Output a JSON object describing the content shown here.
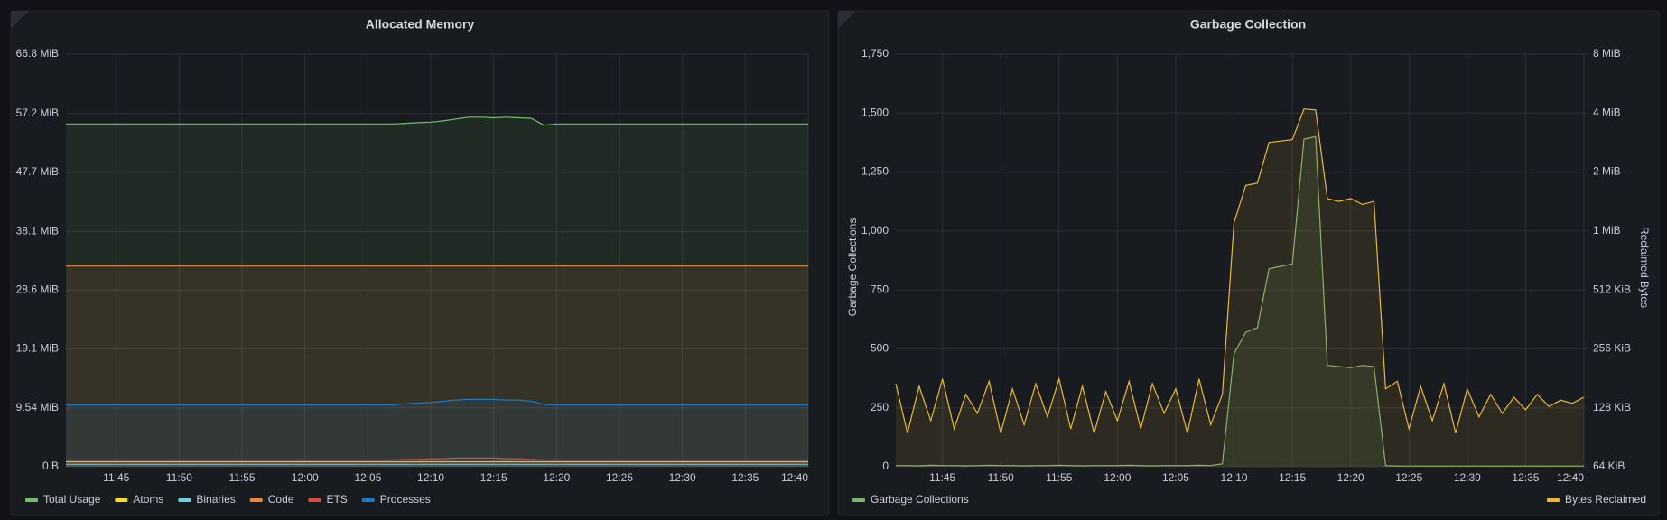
{
  "chart_data": [
    {
      "type": "line",
      "title": "Allocated Memory",
      "x": [
        "11:41",
        "11:42",
        "11:43",
        "11:44",
        "11:45",
        "11:46",
        "11:47",
        "11:48",
        "11:49",
        "11:50",
        "11:51",
        "11:52",
        "11:53",
        "11:54",
        "11:55",
        "11:56",
        "11:57",
        "11:58",
        "11:59",
        "12:00",
        "12:01",
        "12:02",
        "12:03",
        "12:04",
        "12:05",
        "12:06",
        "12:07",
        "12:08",
        "12:09",
        "12:10",
        "12:11",
        "12:12",
        "12:13",
        "12:14",
        "12:15",
        "12:16",
        "12:17",
        "12:18",
        "12:19",
        "12:20",
        "12:21",
        "12:22",
        "12:23",
        "12:24",
        "12:25",
        "12:26",
        "12:27",
        "12:28",
        "12:29",
        "12:30",
        "12:31",
        "12:32",
        "12:33",
        "12:34",
        "12:35",
        "12:36",
        "12:37",
        "12:38",
        "12:39",
        "12:40"
      ],
      "xlim": [
        "11:41",
        "12:40"
      ],
      "xticks": [
        "11:45",
        "11:50",
        "11:55",
        "12:00",
        "12:05",
        "12:10",
        "12:15",
        "12:20",
        "12:25",
        "12:30",
        "12:35",
        "12:40"
      ],
      "ylim": [
        0,
        66.8
      ],
      "yticks": [
        {
          "value": 0,
          "label": "0 B"
        },
        {
          "value": 9.54,
          "label": "9.54 MiB"
        },
        {
          "value": 19.1,
          "label": "19.1 MiB"
        },
        {
          "value": 28.6,
          "label": "28.6 MiB"
        },
        {
          "value": 38.1,
          "label": "38.1 MiB"
        },
        {
          "value": 47.7,
          "label": "47.7 MiB"
        },
        {
          "value": 57.2,
          "label": "57.2 MiB"
        },
        {
          "value": 66.8,
          "label": "66.8 MiB"
        }
      ],
      "grid": true,
      "series": [
        {
          "name": "Total Usage",
          "color": "#73bf69",
          "values": [
            55.5,
            55.5,
            55.5,
            55.5,
            55.5,
            55.5,
            55.5,
            55.5,
            55.5,
            55.5,
            55.5,
            55.5,
            55.5,
            55.5,
            55.5,
            55.5,
            55.5,
            55.5,
            55.5,
            55.5,
            55.5,
            55.5,
            55.5,
            55.5,
            55.5,
            55.5,
            55.5,
            55.6,
            55.7,
            55.8,
            56,
            56.3,
            56.6,
            56.6,
            56.5,
            56.6,
            56.5,
            56.4,
            55.3,
            55.5,
            55.5,
            55.5,
            55.5,
            55.5,
            55.5,
            55.5,
            55.5,
            55.5,
            55.5,
            55.5,
            55.5,
            55.5,
            55.5,
            55.5,
            55.5,
            55.5,
            55.5,
            55.5,
            55.5,
            55.5
          ]
        },
        {
          "name": "Atoms",
          "color": "#fade2a",
          "values": [
            0.8,
            0.8,
            0.8,
            0.8,
            0.8,
            0.8,
            0.8,
            0.8,
            0.8,
            0.8,
            0.8,
            0.8,
            0.8,
            0.8,
            0.8,
            0.8,
            0.8,
            0.8,
            0.8,
            0.8,
            0.8,
            0.8,
            0.8,
            0.8,
            0.8,
            0.8,
            0.8,
            0.8,
            0.8,
            0.8,
            0.8,
            0.8,
            0.8,
            0.8,
            0.8,
            0.8,
            0.8,
            0.8,
            0.8,
            0.8,
            0.8,
            0.8,
            0.8,
            0.8,
            0.8,
            0.8,
            0.8,
            0.8,
            0.8,
            0.8,
            0.8,
            0.8,
            0.8,
            0.8,
            0.8,
            0.8,
            0.8,
            0.8,
            0.8,
            0.8
          ]
        },
        {
          "name": "Binaries",
          "color": "#6ed0e0",
          "values": [
            0.4,
            0.4,
            0.4,
            0.4,
            0.4,
            0.4,
            0.4,
            0.4,
            0.4,
            0.4,
            0.4,
            0.4,
            0.4,
            0.4,
            0.4,
            0.4,
            0.4,
            0.4,
            0.4,
            0.4,
            0.4,
            0.4,
            0.4,
            0.4,
            0.4,
            0.4,
            0.4,
            0.4,
            0.4,
            0.4,
            0.4,
            0.4,
            0.4,
            0.4,
            0.4,
            0.4,
            0.4,
            0.4,
            0.4,
            0.4,
            0.4,
            0.4,
            0.4,
            0.4,
            0.4,
            0.4,
            0.4,
            0.4,
            0.4,
            0.4,
            0.4,
            0.4,
            0.4,
            0.4,
            0.4,
            0.4,
            0.4,
            0.4,
            0.4,
            0.4
          ]
        },
        {
          "name": "Code",
          "color": "#ef843c",
          "values": [
            32.5,
            32.5,
            32.5,
            32.5,
            32.5,
            32.5,
            32.5,
            32.5,
            32.5,
            32.5,
            32.5,
            32.5,
            32.5,
            32.5,
            32.5,
            32.5,
            32.5,
            32.5,
            32.5,
            32.5,
            32.5,
            32.5,
            32.5,
            32.5,
            32.5,
            32.5,
            32.5,
            32.5,
            32.5,
            32.5,
            32.5,
            32.5,
            32.5,
            32.5,
            32.5,
            32.5,
            32.5,
            32.5,
            32.5,
            32.5,
            32.5,
            32.5,
            32.5,
            32.5,
            32.5,
            32.5,
            32.5,
            32.5,
            32.5,
            32.5,
            32.5,
            32.5,
            32.5,
            32.5,
            32.5,
            32.5,
            32.5,
            32.5,
            32.5,
            32.5
          ]
        },
        {
          "name": "ETS",
          "color": "#e24d42",
          "values": [
            1.1,
            1.1,
            1.1,
            1.1,
            1.1,
            1.1,
            1.1,
            1.1,
            1.1,
            1.1,
            1.1,
            1.1,
            1.1,
            1.1,
            1.1,
            1.1,
            1.1,
            1.1,
            1.1,
            1.1,
            1.1,
            1.1,
            1.1,
            1.1,
            1.1,
            1.1,
            1.1,
            1.2,
            1.2,
            1.3,
            1.3,
            1.4,
            1.4,
            1.4,
            1.4,
            1.3,
            1.3,
            1.2,
            1.1,
            1.1,
            1.1,
            1.1,
            1.1,
            1.1,
            1.1,
            1.1,
            1.1,
            1.1,
            1.1,
            1.1,
            1.1,
            1.1,
            1.1,
            1.1,
            1.1,
            1.1,
            1.1,
            1.1,
            1.1,
            1.1
          ]
        },
        {
          "name": "Processes",
          "color": "#1f78c1",
          "values": [
            10,
            10,
            10,
            10,
            10,
            10,
            10,
            10,
            10,
            10,
            10,
            10,
            10,
            10,
            10,
            10,
            10,
            10,
            10,
            10,
            10,
            10,
            10,
            10,
            10,
            10,
            10,
            10.2,
            10.3,
            10.4,
            10.6,
            10.8,
            10.9,
            10.9,
            10.9,
            10.8,
            10.8,
            10.6,
            10.1,
            10,
            10,
            10,
            10,
            10,
            10,
            10,
            10,
            10,
            10,
            10,
            10,
            10,
            10,
            10,
            10,
            10,
            10,
            10,
            10,
            10
          ]
        }
      ]
    },
    {
      "type": "line",
      "title": "Garbage Collection",
      "y_label": "Garbage Collections",
      "y2_label": "Reclaimed Bytes",
      "x": [
        "11:41",
        "11:42",
        "11:43",
        "11:44",
        "11:45",
        "11:46",
        "11:47",
        "11:48",
        "11:49",
        "11:50",
        "11:51",
        "11:52",
        "11:53",
        "11:54",
        "11:55",
        "11:56",
        "11:57",
        "11:58",
        "11:59",
        "12:00",
        "12:01",
        "12:02",
        "12:03",
        "12:04",
        "12:05",
        "12:06",
        "12:07",
        "12:08",
        "12:09",
        "12:10",
        "12:11",
        "12:12",
        "12:13",
        "12:14",
        "12:15",
        "12:16",
        "12:17",
        "12:18",
        "12:19",
        "12:20",
        "12:21",
        "12:22",
        "12:23",
        "12:24",
        "12:25",
        "12:26",
        "12:27",
        "12:28",
        "12:29",
        "12:30",
        "12:31",
        "12:32",
        "12:33",
        "12:34",
        "12:35",
        "12:36",
        "12:37",
        "12:38",
        "12:39",
        "12:40"
      ],
      "xlim": [
        "11:41",
        "12:40"
      ],
      "xticks": [
        "11:45",
        "11:50",
        "11:55",
        "12:00",
        "12:05",
        "12:10",
        "12:15",
        "12:20",
        "12:25",
        "12:30",
        "12:35",
        "12:40"
      ],
      "ylim": [
        0,
        1750
      ],
      "yticks": [
        0,
        250,
        500,
        750,
        {
          "value": 1000,
          "label": "1,000"
        },
        {
          "value": 1250,
          "label": "1,250"
        },
        {
          "value": 1500,
          "label": "1,500"
        },
        {
          "value": 1750,
          "label": "1,750"
        }
      ],
      "y2lim": [
        64,
        8192
      ],
      "y2log": true,
      "y2ticks": [
        {
          "value": 64,
          "label": "64 KiB"
        },
        {
          "value": 128,
          "label": "128 KiB"
        },
        {
          "value": 256,
          "label": "256 KiB"
        },
        {
          "value": 512,
          "label": "512 KiB"
        },
        {
          "value": 1024,
          "label": "1 MiB"
        },
        {
          "value": 2048,
          "label": "2 MiB"
        },
        {
          "value": 4096,
          "label": "4 MiB"
        },
        {
          "value": 8192,
          "label": "8 MiB"
        }
      ],
      "grid": true,
      "series": [
        {
          "name": "Garbage Collections",
          "color": "#7eb26d",
          "values": [
            5,
            5,
            4,
            6,
            5,
            5,
            4,
            5,
            6,
            5,
            5,
            4,
            5,
            5,
            6,
            5,
            4,
            5,
            5,
            5,
            6,
            5,
            4,
            5,
            5,
            5,
            6,
            5,
            12,
            480,
            570,
            590,
            840,
            850,
            860,
            1390,
            1400,
            430,
            425,
            420,
            430,
            425,
            5,
            3,
            3,
            3,
            3,
            3,
            3,
            3,
            3,
            3,
            3,
            3,
            3,
            3,
            3,
            3,
            3,
            3
          ]
        },
        {
          "name": "Bytes Reclaimed",
          "color": "#eab839",
          "axis": "y2",
          "values": [
            170,
            95,
            165,
            110,
            180,
            100,
            150,
            120,
            175,
            95,
            160,
            105,
            170,
            115,
            180,
            100,
            165,
            95,
            155,
            110,
            175,
            100,
            170,
            120,
            160,
            95,
            180,
            105,
            150,
            1130,
            1750,
            1800,
            2900,
            2950,
            3000,
            4300,
            4250,
            1500,
            1450,
            1500,
            1400,
            1450,
            160,
            175,
            100,
            165,
            110,
            170,
            95,
            160,
            115,
            150,
            120,
            145,
            125,
            150,
            130,
            140,
            135,
            145
          ]
        }
      ]
    }
  ]
}
